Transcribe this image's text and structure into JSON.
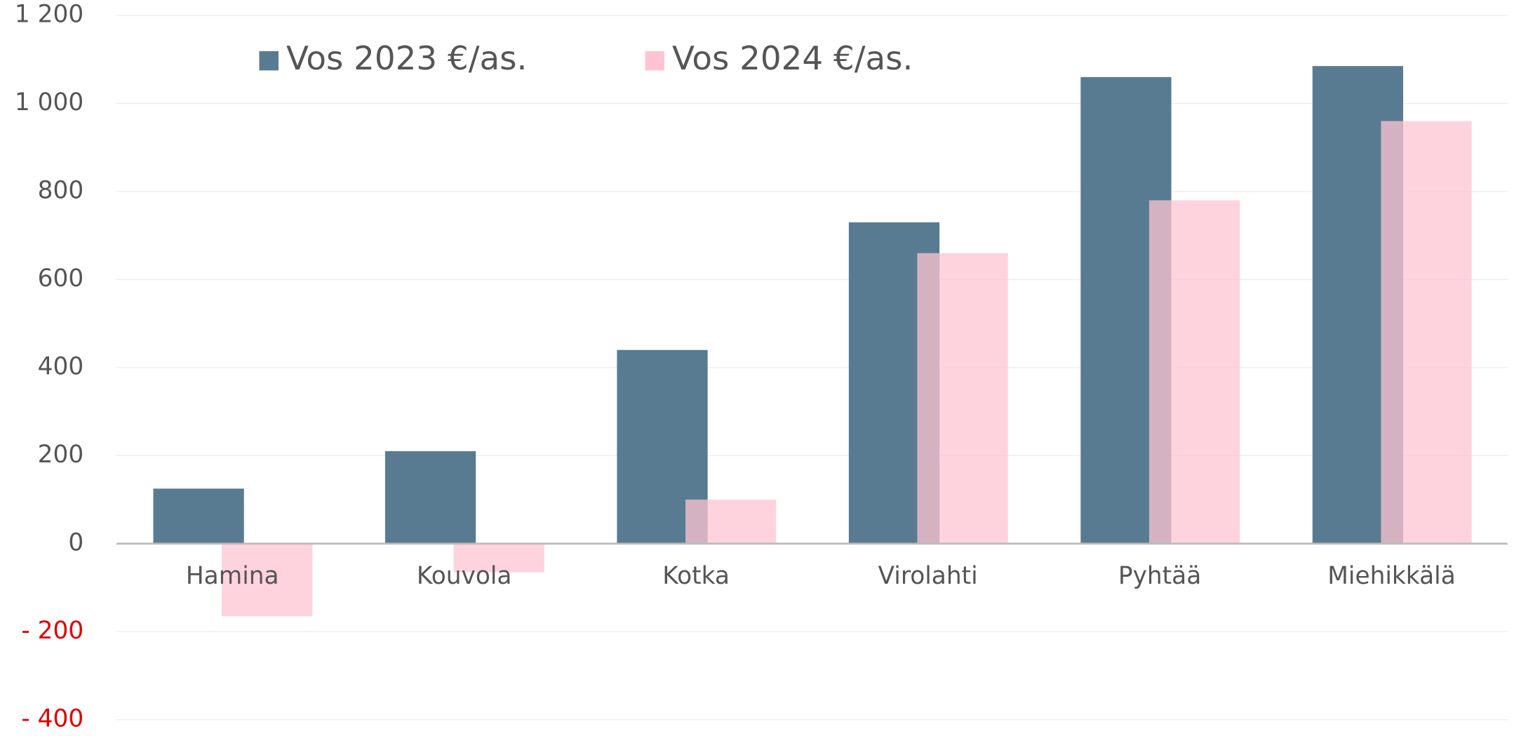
{
  "chart_data": {
    "type": "bar",
    "categories": [
      "Hamina",
      "Kouvola",
      "Kotka",
      "Virolahti",
      "Pyhtää",
      "Miehikkälä"
    ],
    "series": [
      {
        "name": "Vos 2023 €/as.",
        "color": "#587b91",
        "values": [
          125,
          210,
          440,
          730,
          1060,
          1085
        ]
      },
      {
        "name": "Vos 2024 €/as.",
        "color": "#ffc4d3",
        "values": [
          -165,
          -65,
          100,
          660,
          780,
          960
        ]
      }
    ],
    "ylim": [
      -400,
      1200
    ],
    "yticks": [
      {
        "value": -400,
        "label": "- 400"
      },
      {
        "value": -200,
        "label": "- 200"
      },
      0,
      200,
      400,
      600,
      800,
      {
        "value": 1000,
        "label": "1 000"
      },
      {
        "value": 1200,
        "label": "1 200"
      }
    ],
    "grid": true,
    "negative_tick_color": "#e00000",
    "legend": "top-left"
  }
}
